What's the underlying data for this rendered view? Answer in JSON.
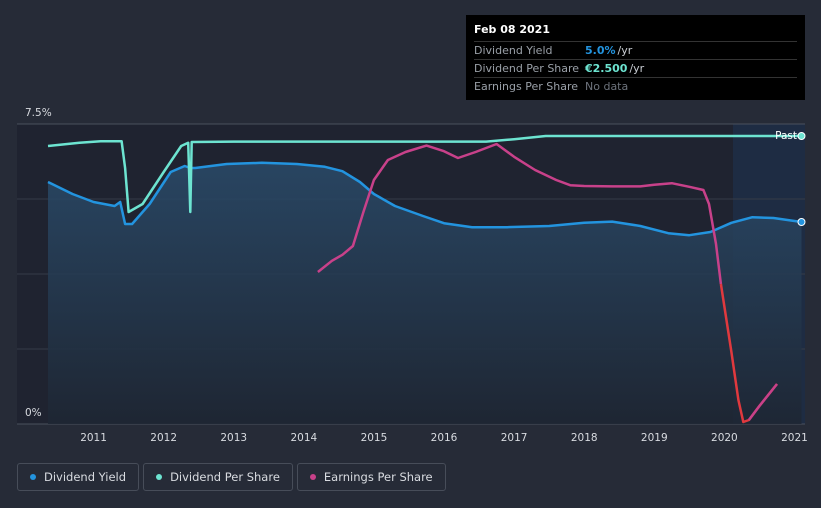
{
  "tooltip": {
    "date": "Feb 08 2021",
    "rows": [
      {
        "label": "Dividend Yield",
        "value": "5.0%",
        "unit": " /yr",
        "color": "#2394df"
      },
      {
        "label": "Dividend Per Share",
        "value": "€2.500",
        "unit": " /yr",
        "color": "#6de4d1"
      },
      {
        "label": "Earnings Per Share",
        "value": "No data",
        "unit": "",
        "color": "#6d737c"
      }
    ]
  },
  "legend": [
    {
      "label": "Dividend Yield",
      "color": "#2394df"
    },
    {
      "label": "Dividend Per Share",
      "color": "#6de4d1"
    },
    {
      "label": "Earnings Per Share",
      "color": "#c8418a"
    }
  ],
  "chart_data": {
    "type": "line",
    "title": "",
    "xlabel": "",
    "ylabel": "",
    "ylim": [
      0,
      7.5
    ],
    "xlim": [
      2010.35,
      2021.15
    ],
    "y_tick_labels": [
      "7.5%",
      "0%"
    ],
    "x_tick_labels": [
      "2011",
      "2012",
      "2013",
      "2014",
      "2015",
      "2016",
      "2017",
      "2018",
      "2019",
      "2020",
      "2021"
    ],
    "x_ticks": [
      2011,
      2012,
      2013,
      2014,
      2015,
      2016,
      2017,
      2018,
      2019,
      2020,
      2021
    ],
    "past_label": "Past",
    "series": [
      {
        "name": "Dividend Yield",
        "color": "#2394df",
        "points": [
          [
            2010.35,
            6.05
          ],
          [
            2010.7,
            5.75
          ],
          [
            2011.0,
            5.55
          ],
          [
            2011.3,
            5.45
          ],
          [
            2011.38,
            5.55
          ],
          [
            2011.45,
            5.0
          ],
          [
            2011.55,
            5.0
          ],
          [
            2011.8,
            5.5
          ],
          [
            2012.1,
            6.3
          ],
          [
            2012.3,
            6.45
          ],
          [
            2012.38,
            6.4
          ],
          [
            2012.45,
            6.4
          ],
          [
            2012.9,
            6.5
          ],
          [
            2013.4,
            6.53
          ],
          [
            2013.9,
            6.5
          ],
          [
            2014.3,
            6.43
          ],
          [
            2014.55,
            6.32
          ],
          [
            2014.8,
            6.05
          ],
          [
            2015.0,
            5.75
          ],
          [
            2015.3,
            5.45
          ],
          [
            2015.7,
            5.2
          ],
          [
            2016.0,
            5.02
          ],
          [
            2016.4,
            4.92
          ],
          [
            2016.9,
            4.92
          ],
          [
            2017.5,
            4.95
          ],
          [
            2018.0,
            5.03
          ],
          [
            2018.4,
            5.06
          ],
          [
            2018.8,
            4.95
          ],
          [
            2019.2,
            4.77
          ],
          [
            2019.5,
            4.72
          ],
          [
            2019.8,
            4.8
          ],
          [
            2020.1,
            5.03
          ],
          [
            2020.4,
            5.17
          ],
          [
            2020.7,
            5.15
          ],
          [
            2021.1,
            5.05
          ]
        ]
      },
      {
        "name": "Dividend Per Share",
        "color": "#6de4d1",
        "points": [
          [
            2010.35,
            6.95
          ],
          [
            2010.8,
            7.03
          ],
          [
            2011.1,
            7.07
          ],
          [
            2011.4,
            7.07
          ],
          [
            2011.45,
            6.4
          ],
          [
            2011.5,
            5.3
          ],
          [
            2011.7,
            5.5
          ],
          [
            2012.0,
            6.3
          ],
          [
            2012.25,
            6.95
          ],
          [
            2012.35,
            7.03
          ],
          [
            2012.38,
            5.3
          ],
          [
            2012.4,
            7.05
          ],
          [
            2013.0,
            7.06
          ],
          [
            2014.0,
            7.06
          ],
          [
            2015.0,
            7.06
          ],
          [
            2016.0,
            7.06
          ],
          [
            2016.6,
            7.06
          ],
          [
            2017.0,
            7.12
          ],
          [
            2017.45,
            7.2
          ],
          [
            2018.0,
            7.2
          ],
          [
            2019.0,
            7.2
          ],
          [
            2020.0,
            7.2
          ],
          [
            2021.1,
            7.2
          ]
        ]
      },
      {
        "name": "Earnings Per Share",
        "color": "#c8418a",
        "points": [
          [
            2014.2,
            3.8
          ],
          [
            2014.4,
            4.08
          ],
          [
            2014.55,
            4.23
          ],
          [
            2014.7,
            4.45
          ],
          [
            2014.85,
            5.3
          ],
          [
            2015.0,
            6.1
          ],
          [
            2015.2,
            6.6
          ],
          [
            2015.45,
            6.8
          ],
          [
            2015.75,
            6.96
          ],
          [
            2016.0,
            6.82
          ],
          [
            2016.2,
            6.65
          ],
          [
            2016.45,
            6.8
          ],
          [
            2016.75,
            7.0
          ],
          [
            2017.0,
            6.68
          ],
          [
            2017.3,
            6.35
          ],
          [
            2017.6,
            6.1
          ],
          [
            2017.8,
            5.97
          ],
          [
            2018.0,
            5.95
          ],
          [
            2018.4,
            5.94
          ],
          [
            2018.8,
            5.94
          ],
          [
            2019.0,
            5.98
          ],
          [
            2019.25,
            6.02
          ],
          [
            2019.5,
            5.93
          ],
          [
            2019.7,
            5.85
          ],
          [
            2019.78,
            5.5
          ],
          [
            2019.88,
            4.5
          ],
          [
            2019.95,
            3.5
          ],
          [
            2020.1,
            1.8
          ],
          [
            2020.2,
            0.6
          ],
          [
            2020.27,
            0.05
          ],
          [
            2020.35,
            0.1
          ],
          [
            2020.5,
            0.45
          ],
          [
            2020.75,
            1.0
          ]
        ]
      }
    ]
  }
}
